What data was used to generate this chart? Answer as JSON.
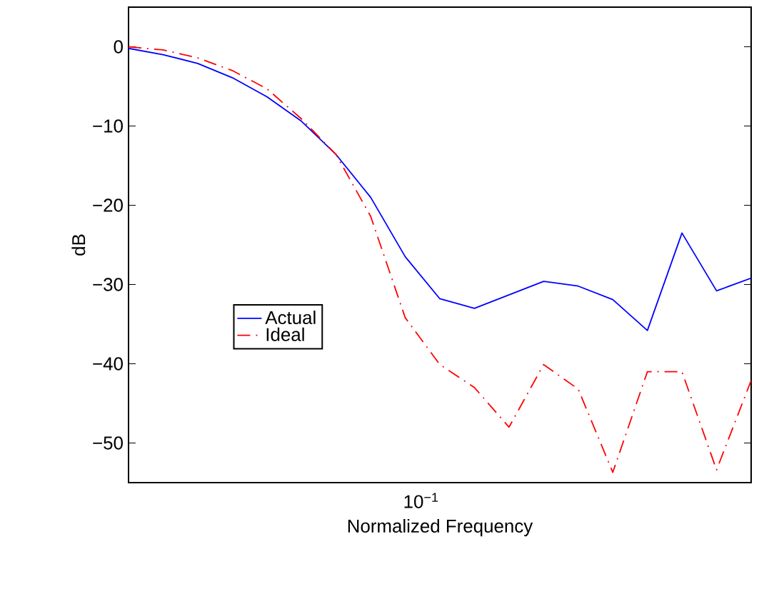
{
  "chart_data": {
    "type": "line",
    "xlabel": "Normalized Frequency",
    "ylabel": "dB",
    "categories": [
      null,
      null,
      null,
      null,
      null,
      null,
      null,
      null,
      null,
      null,
      null,
      null,
      null,
      null,
      null,
      null,
      null,
      null,
      null
    ],
    "series": [
      {
        "name": "Actual",
        "color": "#0000ff",
        "line_style": "solid",
        "values": [
          -0.2,
          -1.0,
          -2.1,
          -3.9,
          -6.3,
          -9.4,
          -13.6,
          -19.0,
          -26.5,
          -31.8,
          -33.0,
          -31.3,
          -29.6,
          -30.2,
          -31.9,
          -35.8,
          -23.5,
          -30.8,
          -29.2
        ]
      },
      {
        "name": "Ideal",
        "color": "#ff0000",
        "line_style": "dashdot",
        "values": [
          0.0,
          -0.4,
          -1.4,
          -3.0,
          -5.3,
          -9.1,
          -13.6,
          -21.4,
          -34.2,
          -40.1,
          -43.0,
          -48.0,
          -40.1,
          -43.2,
          -53.7,
          -41.0,
          -41.0,
          -53.4,
          -42.1
        ]
      }
    ],
    "ylim": [
      -55,
      5
    ],
    "annotations": [
      "10$^{−1}$"
    ],
    "yticks": [
      {
        "value": -50,
        "label": "−50"
      },
      {
        "value": -40,
        "label": "−40"
      },
      {
        "value": -30,
        "label": "−30"
      },
      {
        "value": -20,
        "label": "−20"
      },
      {
        "value": -10,
        "label": "−10"
      },
      {
        "value": 0,
        "label": "0"
      }
    ],
    "grid": false,
    "legend": "left",
    "marker": "none"
  }
}
